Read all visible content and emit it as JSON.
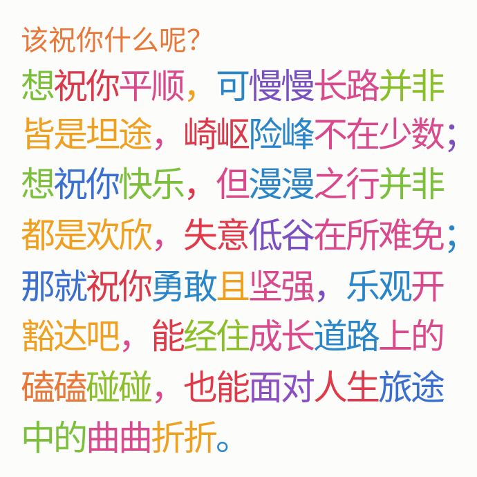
{
  "poem": {
    "lines": [
      {
        "segments": [
          {
            "text": "该祝你什么呢？",
            "color": "#e8773a"
          }
        ]
      },
      {
        "segments": [
          {
            "text": "想",
            "color": "#7cbf3a"
          },
          {
            "text": "祝你",
            "color": "#d9394a"
          },
          {
            "text": "平顺",
            "color": "#d84a8c"
          },
          {
            "text": "，",
            "color": "#f0a020"
          },
          {
            "text": "可",
            "color": "#2b86c8"
          },
          {
            "text": "慢慢",
            "color": "#7a4fc0"
          },
          {
            "text": "长路",
            "color": "#d84a8c"
          },
          {
            "text": "并非",
            "color": "#8bbf2a"
          }
        ]
      },
      {
        "segments": [
          {
            "text": "皆是坦途",
            "color": "#f0a020"
          },
          {
            "text": "，",
            "color": "#d84a8c"
          },
          {
            "text": "崎岖",
            "color": "#d9394a"
          },
          {
            "text": "险峰",
            "color": "#2b86c8"
          },
          {
            "text": "不在少数",
            "color": "#d84a8c"
          },
          {
            "text": "；",
            "color": "#7a4fc0"
          }
        ]
      },
      {
        "segments": [
          {
            "text": "想",
            "color": "#7cbf3a"
          },
          {
            "text": "祝你",
            "color": "#3a6fd0"
          },
          {
            "text": "快乐",
            "color": "#7cbf3a"
          },
          {
            "text": "，",
            "color": "#d9394a"
          },
          {
            "text": "但",
            "color": "#d84a8c"
          },
          {
            "text": "漫漫",
            "color": "#2b86c8"
          },
          {
            "text": "之行",
            "color": "#d84a8c"
          },
          {
            "text": "并非",
            "color": "#7cbf3a"
          }
        ]
      },
      {
        "segments": [
          {
            "text": "都是欢欣",
            "color": "#f0a020"
          },
          {
            "text": "，",
            "color": "#d84a8c"
          },
          {
            "text": "失意",
            "color": "#e03a4a"
          },
          {
            "text": "低谷",
            "color": "#7a4fc0"
          },
          {
            "text": "在所难免",
            "color": "#d84a8c"
          },
          {
            "text": "；",
            "color": "#2b86c8"
          }
        ]
      },
      {
        "segments": [
          {
            "text": "那就",
            "color": "#3a6fd0"
          },
          {
            "text": "祝你",
            "color": "#d9394a"
          },
          {
            "text": "勇敢",
            "color": "#2b86c8"
          },
          {
            "text": "且",
            "color": "#f0a020"
          },
          {
            "text": "坚强",
            "color": "#d84a8c"
          },
          {
            "text": "，",
            "color": "#7a4fc0"
          },
          {
            "text": "乐观",
            "color": "#2b86c8"
          },
          {
            "text": "开",
            "color": "#d84a8c"
          }
        ]
      },
      {
        "segments": [
          {
            "text": "豁达吧",
            "color": "#f0a020"
          },
          {
            "text": "，",
            "color": "#d84a8c"
          },
          {
            "text": "能",
            "color": "#e03a4a"
          },
          {
            "text": "经住",
            "color": "#8bbf2a"
          },
          {
            "text": "成长",
            "color": "#d84a8c"
          },
          {
            "text": "道路",
            "color": "#2b86c8"
          },
          {
            "text": "上的",
            "color": "#d84a8c"
          }
        ]
      },
      {
        "segments": [
          {
            "text": "磕磕",
            "color": "#e8773a"
          },
          {
            "text": "碰碰",
            "color": "#8bbf2a"
          },
          {
            "text": "，",
            "color": "#d84a8c"
          },
          {
            "text": "也能",
            "color": "#e03a4a"
          },
          {
            "text": "面对",
            "color": "#8b4fc0"
          },
          {
            "text": "人生",
            "color": "#e03a4a"
          },
          {
            "text": "旅途",
            "color": "#3a6fd0"
          }
        ]
      },
      {
        "segments": [
          {
            "text": "中的",
            "color": "#7cbf3a"
          },
          {
            "text": "曲曲",
            "color": "#d84a8c"
          },
          {
            "text": "折折",
            "color": "#f0a020"
          },
          {
            "text": "。",
            "color": "#2b86c8"
          }
        ]
      }
    ]
  }
}
